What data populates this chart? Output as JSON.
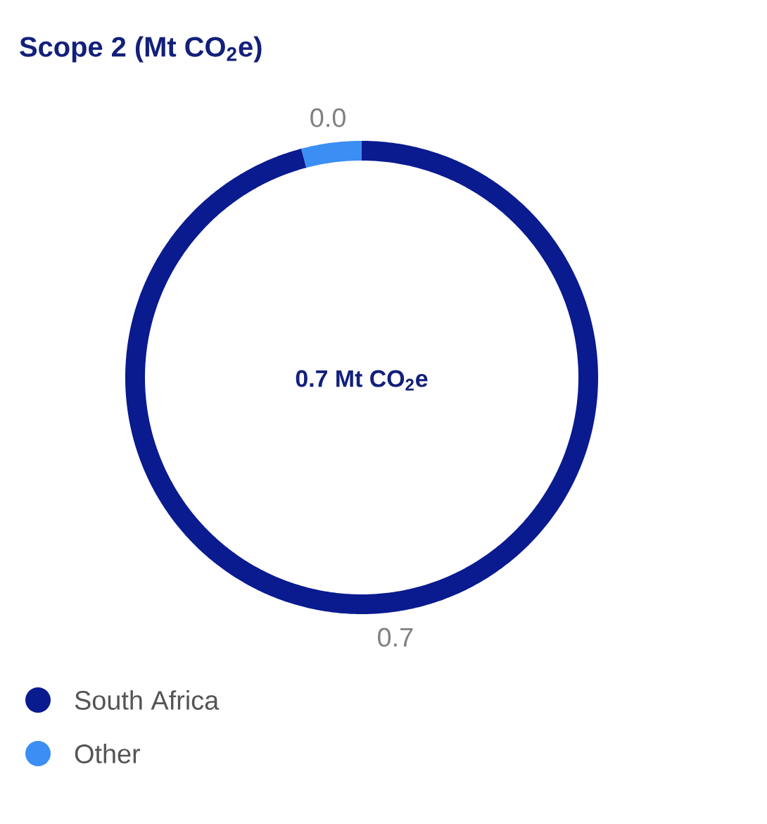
{
  "chart_data": {
    "type": "donut",
    "title": "Scope 2 (Mt CO$_{2}$e)",
    "categories": [
      "South Africa",
      "Other"
    ],
    "values": [
      0.7,
      0.03
    ],
    "value_labels": [
      "0.7",
      "0.0"
    ],
    "colors": [
      "#0a1a8f",
      "#3b8ef3"
    ],
    "annotations": [
      "0.7 Mt CO$_{2}$e"
    ],
    "legend": "bottom"
  }
}
